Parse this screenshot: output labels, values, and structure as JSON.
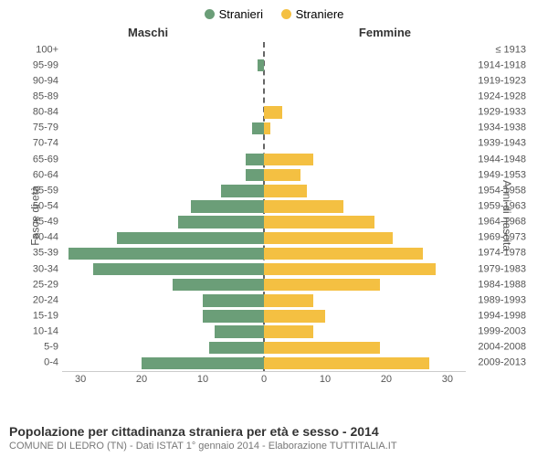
{
  "legend": {
    "male": "Stranieri",
    "female": "Straniere"
  },
  "headers": {
    "left": "Maschi",
    "right": "Femmine"
  },
  "y_left_label": "Fasce di età",
  "y_right_label": "Anni di nascita",
  "footer": {
    "title": "Popolazione per cittadinanza straniera per età e sesso - 2014",
    "sub": "COMUNE DI LEDRO (TN) - Dati ISTAT 1° gennaio 2014 - Elaborazione TUTTITALIA.IT"
  },
  "chart": {
    "type": "population-pyramid",
    "colors": {
      "male": "#6b9e78",
      "female": "#f4c042",
      "center_line": "#666666",
      "grid": "#e8e8e8",
      "background": "#ffffff"
    },
    "x_max": 33,
    "x_ticks": [
      0,
      10,
      20,
      30
    ],
    "bar_height_ratio": 0.78,
    "age_groups": [
      "0-4",
      "5-9",
      "10-14",
      "15-19",
      "20-24",
      "25-29",
      "30-34",
      "35-39",
      "40-44",
      "45-49",
      "50-54",
      "55-59",
      "60-64",
      "65-69",
      "70-74",
      "75-79",
      "80-84",
      "85-89",
      "90-94",
      "95-99",
      "100+"
    ],
    "birth_years": [
      "2009-2013",
      "2004-2008",
      "1999-2003",
      "1994-1998",
      "1989-1993",
      "1984-1988",
      "1979-1983",
      "1974-1978",
      "1969-1973",
      "1964-1968",
      "1959-1963",
      "1954-1958",
      "1949-1953",
      "1944-1948",
      "1939-1943",
      "1934-1938",
      "1929-1933",
      "1924-1928",
      "1919-1923",
      "1914-1918",
      "≤ 1913"
    ],
    "male": [
      20,
      9,
      8,
      10,
      10,
      15,
      28,
      32,
      24,
      14,
      12,
      7,
      3,
      3,
      0,
      2,
      0,
      0,
      0,
      1,
      0
    ],
    "female": [
      27,
      19,
      8,
      10,
      8,
      19,
      28,
      26,
      21,
      18,
      13,
      7,
      6,
      8,
      0,
      1,
      3,
      0,
      0,
      0,
      0
    ]
  }
}
